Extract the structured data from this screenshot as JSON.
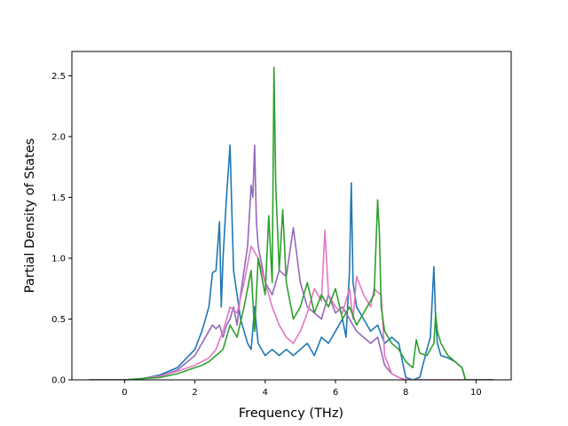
{
  "chart_data": {
    "type": "line",
    "title": "",
    "xlabel": "Frequency (THz)",
    "ylabel": "Partial Density of States",
    "xlim": [
      -1.5,
      11.0
    ],
    "ylim": [
      0.0,
      2.7
    ],
    "xticks": [
      0,
      2,
      4,
      6,
      8,
      10
    ],
    "xtick_labels": [
      "0",
      "2",
      "4",
      "6",
      "8",
      "10"
    ],
    "yticks": [
      0.0,
      0.5,
      1.0,
      1.5,
      2.0,
      2.5
    ],
    "ytick_labels": [
      "0.0",
      "0.5",
      "1.0",
      "1.5",
      "2.0",
      "2.5"
    ],
    "grid": false,
    "legend": "none",
    "series": [
      {
        "color": "#1f77b4",
        "x": [
          -1.0,
          0.0,
          0.5,
          1.0,
          1.5,
          2.0,
          2.2,
          2.4,
          2.5,
          2.6,
          2.7,
          2.75,
          2.8,
          2.9,
          3.0,
          3.05,
          3.1,
          3.2,
          3.3,
          3.4,
          3.5,
          3.6,
          3.7,
          3.8,
          4.0,
          4.2,
          4.4,
          4.6,
          4.8,
          5.0,
          5.2,
          5.4,
          5.6,
          5.8,
          6.0,
          6.2,
          6.3,
          6.4,
          6.45,
          6.5,
          6.6,
          6.8,
          7.0,
          7.2,
          7.4,
          7.6,
          7.8,
          8.0,
          8.2,
          8.4,
          8.6,
          8.7,
          8.8,
          8.85,
          8.9,
          9.0,
          9.2,
          9.4,
          9.6,
          9.7,
          10.5
        ],
        "y": [
          0.0,
          0.0,
          0.01,
          0.04,
          0.1,
          0.25,
          0.4,
          0.6,
          0.88,
          0.9,
          1.3,
          0.6,
          1.0,
          1.5,
          1.93,
          1.4,
          0.9,
          0.7,
          0.5,
          0.4,
          0.3,
          0.25,
          0.6,
          0.3,
          0.2,
          0.25,
          0.2,
          0.25,
          0.2,
          0.25,
          0.3,
          0.2,
          0.35,
          0.3,
          0.4,
          0.5,
          0.35,
          0.9,
          1.62,
          0.8,
          0.6,
          0.5,
          0.4,
          0.45,
          0.3,
          0.35,
          0.3,
          0.02,
          0.0,
          0.02,
          0.25,
          0.35,
          0.93,
          0.5,
          0.3,
          0.2,
          0.18,
          0.15,
          0.1,
          0.0,
          0.0
        ]
      },
      {
        "color": "#9467bd",
        "x": [
          -1.0,
          0.0,
          0.5,
          1.0,
          1.5,
          2.0,
          2.2,
          2.4,
          2.5,
          2.6,
          2.7,
          2.8,
          2.9,
          3.0,
          3.1,
          3.2,
          3.3,
          3.4,
          3.5,
          3.6,
          3.65,
          3.7,
          3.75,
          3.8,
          3.9,
          4.0,
          4.2,
          4.4,
          4.6,
          4.8,
          5.0,
          5.2,
          5.4,
          5.6,
          5.8,
          6.0,
          6.2,
          6.4,
          6.6,
          6.8,
          7.0,
          7.2,
          7.4,
          7.6,
          7.8,
          8.0,
          8.2,
          8.4,
          8.6,
          8.8,
          8.9,
          9.0,
          9.2,
          9.4,
          9.5,
          9.6,
          10.5
        ],
        "y": [
          0.0,
          0.0,
          0.01,
          0.03,
          0.08,
          0.2,
          0.3,
          0.4,
          0.45,
          0.42,
          0.45,
          0.35,
          0.45,
          0.5,
          0.6,
          0.45,
          0.7,
          0.9,
          1.1,
          1.6,
          1.5,
          1.93,
          1.3,
          1.1,
          0.95,
          0.8,
          0.7,
          0.9,
          0.85,
          1.25,
          0.8,
          0.6,
          0.55,
          0.5,
          0.7,
          0.55,
          0.6,
          0.5,
          0.4,
          0.35,
          0.3,
          0.35,
          0.12,
          0.05,
          0.02,
          0.0,
          0.0,
          0.0,
          0.0,
          0.0,
          0.0,
          0.0,
          0.0,
          0.0,
          0.0,
          0.0,
          0.0
        ]
      },
      {
        "color": "#e377c2",
        "x": [
          -1.0,
          0.0,
          0.5,
          1.0,
          1.5,
          2.0,
          2.2,
          2.4,
          2.6,
          2.8,
          3.0,
          3.2,
          3.4,
          3.6,
          3.8,
          4.0,
          4.2,
          4.4,
          4.6,
          4.8,
          5.0,
          5.2,
          5.4,
          5.6,
          5.7,
          5.8,
          6.0,
          6.2,
          6.4,
          6.5,
          6.6,
          6.8,
          7.0,
          7.1,
          7.2,
          7.3,
          7.4,
          7.6,
          7.8,
          8.0,
          8.2,
          8.4,
          8.6,
          8.8,
          9.0,
          10.5
        ],
        "y": [
          0.0,
          0.0,
          0.01,
          0.03,
          0.07,
          0.12,
          0.15,
          0.18,
          0.25,
          0.4,
          0.6,
          0.55,
          0.8,
          1.1,
          1.0,
          0.8,
          0.6,
          0.45,
          0.35,
          0.3,
          0.4,
          0.55,
          0.75,
          0.65,
          1.23,
          0.7,
          0.6,
          0.55,
          0.75,
          0.5,
          0.85,
          0.7,
          0.6,
          0.75,
          0.72,
          0.7,
          0.2,
          0.05,
          0.02,
          0.0,
          0.0,
          0.0,
          0.0,
          0.0,
          0.0,
          0.0
        ]
      },
      {
        "color": "#2ca02c",
        "x": [
          -1.0,
          0.0,
          0.5,
          1.0,
          1.5,
          2.0,
          2.2,
          2.4,
          2.6,
          2.8,
          3.0,
          3.2,
          3.4,
          3.6,
          3.7,
          3.8,
          4.0,
          4.1,
          4.2,
          4.25,
          4.3,
          4.4,
          4.5,
          4.6,
          4.8,
          5.0,
          5.2,
          5.4,
          5.6,
          5.8,
          6.0,
          6.2,
          6.4,
          6.6,
          6.8,
          7.0,
          7.1,
          7.2,
          7.25,
          7.3,
          7.4,
          7.6,
          7.8,
          8.0,
          8.2,
          8.3,
          8.4,
          8.6,
          8.8,
          8.85,
          8.9,
          9.0,
          9.2,
          9.4,
          9.6,
          9.7,
          10.5
        ],
        "y": [
          0.0,
          0.0,
          0.01,
          0.02,
          0.05,
          0.1,
          0.12,
          0.15,
          0.2,
          0.25,
          0.45,
          0.35,
          0.6,
          0.9,
          0.4,
          1.0,
          0.7,
          1.35,
          0.8,
          2.57,
          1.6,
          0.9,
          1.4,
          0.8,
          0.5,
          0.6,
          0.8,
          0.55,
          0.7,
          0.6,
          0.75,
          0.5,
          0.6,
          0.45,
          0.55,
          0.65,
          0.7,
          1.48,
          1.2,
          0.6,
          0.4,
          0.3,
          0.25,
          0.15,
          0.1,
          0.33,
          0.22,
          0.2,
          0.3,
          0.54,
          0.4,
          0.3,
          0.2,
          0.15,
          0.1,
          0.0,
          0.0
        ]
      }
    ]
  }
}
